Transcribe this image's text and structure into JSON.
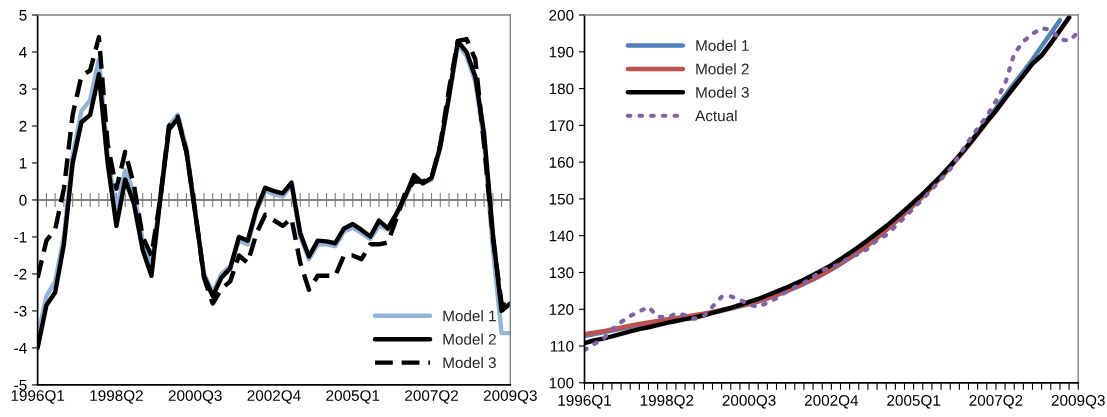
{
  "chart_data": [
    {
      "type": "line",
      "categories": [
        "1996Q1",
        null,
        null,
        null,
        null,
        null,
        null,
        null,
        null,
        "1998Q2",
        null,
        null,
        null,
        null,
        null,
        null,
        null,
        null,
        "2000Q3",
        null,
        null,
        null,
        null,
        null,
        null,
        null,
        null,
        "2002Q4",
        null,
        null,
        null,
        null,
        null,
        null,
        null,
        null,
        "2005Q1",
        null,
        null,
        null,
        null,
        null,
        null,
        null,
        null,
        "2007Q2",
        null,
        null,
        null,
        null,
        null,
        null,
        null,
        null,
        "2009Q3"
      ],
      "series": [
        {
          "name": "Model 1",
          "color": "#95b3d7",
          "line_style": "solid",
          "values": [
            -3.7,
            -2.6,
            -2.2,
            -1.0,
            1.2,
            2.4,
            2.7,
            3.8,
            1.2,
            -0.3,
            0.8,
            0.2,
            -1.1,
            -1.8,
            0.1,
            2.0,
            2.3,
            1.4,
            -0.3,
            -2.0,
            -2.5,
            -2.0,
            -1.8,
            -1.1,
            -1.2,
            -0.3,
            0.25,
            0.15,
            0.1,
            0.4,
            -1.0,
            -1.6,
            -1.2,
            -1.2,
            -1.25,
            -0.85,
            -0.75,
            -0.9,
            -1.05,
            -0.7,
            -0.8,
            -0.4,
            0.05,
            0.6,
            0.45,
            0.55,
            1.4,
            2.8,
            4.2,
            3.9,
            3.2,
            1.6,
            -1.3,
            -3.6,
            -3.6
          ]
        },
        {
          "name": "Model 2",
          "color": "#000000",
          "line_style": "solid",
          "values": [
            -4.0,
            -2.85,
            -2.5,
            -1.2,
            1.0,
            2.1,
            2.3,
            3.4,
            1.0,
            -0.7,
            0.55,
            -0.1,
            -1.35,
            -2.05,
            0.0,
            1.9,
            2.2,
            1.3,
            -0.35,
            -2.05,
            -2.6,
            -2.1,
            -1.85,
            -1.0,
            -1.1,
            -0.25,
            0.33,
            0.24,
            0.18,
            0.47,
            -0.9,
            -1.53,
            -1.1,
            -1.12,
            -1.17,
            -0.77,
            -0.65,
            -0.81,
            -0.99,
            -0.56,
            -0.77,
            -0.36,
            0.1,
            0.67,
            0.45,
            0.6,
            1.45,
            2.8,
            4.28,
            4.0,
            3.33,
            1.8,
            -0.9,
            -3.0,
            -2.8
          ]
        },
        {
          "name": "Model 3",
          "color": "#000000",
          "line_style": "dashed",
          "values": [
            -2.1,
            -1.1,
            -0.8,
            0.3,
            2.3,
            3.35,
            3.5,
            4.4,
            1.5,
            0.3,
            1.3,
            0.4,
            -1.0,
            -1.5,
            0.0,
            2.0,
            2.25,
            1.3,
            -0.3,
            -2.1,
            -2.8,
            -2.4,
            -2.2,
            -1.5,
            -1.7,
            -0.9,
            -0.4,
            -0.55,
            -0.7,
            -0.5,
            -1.7,
            -2.43,
            -2.05,
            -2.05,
            -2.05,
            -1.5,
            -1.5,
            -1.6,
            -1.2,
            -1.2,
            -1.15,
            -0.5,
            0.2,
            0.5,
            0.5,
            0.6,
            1.5,
            3.0,
            4.3,
            4.35,
            3.8,
            1.5,
            -1.0,
            -2.8,
            -2.9
          ]
        }
      ],
      "ylim": [
        -5,
        5
      ],
      "yticks": [
        -5,
        -4,
        -3,
        -2,
        -1,
        0,
        1,
        2,
        3,
        4,
        5
      ],
      "ref_lines": [
        {
          "axis": "y",
          "value": 0,
          "color": "#808080"
        }
      ],
      "legend": "bottom right",
      "grid": false
    },
    {
      "type": "line",
      "categories": [
        "1996Q1",
        null,
        null,
        null,
        null,
        null,
        null,
        null,
        null,
        "1998Q2",
        null,
        null,
        null,
        null,
        null,
        null,
        null,
        null,
        "2000Q3",
        null,
        null,
        null,
        null,
        null,
        null,
        null,
        null,
        "2002Q4",
        null,
        null,
        null,
        null,
        null,
        null,
        null,
        null,
        "2005Q1",
        null,
        null,
        null,
        null,
        null,
        null,
        null,
        null,
        "2007Q2",
        null,
        null,
        null,
        null,
        null,
        null,
        null,
        null,
        "2009Q3"
      ],
      "series": [
        {
          "name": "Model 1",
          "color": "#4f81bd",
          "line_style": "solid",
          "values": [
            112.8,
            113.2,
            113.7,
            114.2,
            114.7,
            115.2,
            115.7,
            116.1,
            116.5,
            116.9,
            117.3,
            117.7,
            118.1,
            118.6,
            119.1,
            119.6,
            120.2,
            120.8,
            121.4,
            122.1,
            122.9,
            123.8,
            124.8,
            125.8,
            126.9,
            128.1,
            129.4,
            130.8,
            132.3,
            133.9,
            135.6,
            137.4,
            139.4,
            141.5,
            143.7,
            146.0,
            148.4,
            150.8,
            153.3,
            156.0,
            158.8,
            161.8,
            164.9,
            168.1,
            171.4,
            174.7,
            178.1,
            181.4,
            184.6,
            187.9,
            191.5,
            195.0,
            198.6,
            null,
            null
          ]
        },
        {
          "name": "Model 2",
          "color": "#c0504d",
          "line_style": "solid",
          "values": [
            113.2,
            113.6,
            114.0,
            114.5,
            115.0,
            115.5,
            116.0,
            116.4,
            116.8,
            117.2,
            117.6,
            118.0,
            118.4,
            118.8,
            119.3,
            119.8,
            120.3,
            120.9,
            121.5,
            122.2,
            123.0,
            123.9,
            124.9,
            125.9,
            127.0,
            128.2,
            129.5,
            130.9,
            132.4,
            134.0,
            135.7,
            137.5,
            139.5,
            141.6,
            143.8,
            146.0,
            148.3,
            150.7,
            153.2,
            155.8,
            158.6,
            161.5,
            164.5,
            167.6,
            170.8,
            173.9,
            177.2,
            180.4,
            183.6,
            186.8,
            189.1,
            192.4,
            195.9,
            199.4,
            null
          ]
        },
        {
          "name": "Model 3",
          "color": "#000000",
          "line_style": "solid",
          "values": [
            110.8,
            111.5,
            112.0,
            112.6,
            113.3,
            114.0,
            114.6,
            115.1,
            115.7,
            116.3,
            116.8,
            117.3,
            117.7,
            118.3,
            119.0,
            119.7,
            120.4,
            121.2,
            122.0,
            122.8,
            123.8,
            124.8,
            125.8,
            126.9,
            128.0,
            129.3,
            130.6,
            132.0,
            133.6,
            135.3,
            137.0,
            138.8,
            140.7,
            142.6,
            144.7,
            146.9,
            149.1,
            151.4,
            153.8,
            156.3,
            159.0,
            161.8,
            164.7,
            167.8,
            171.0,
            174.0,
            177.3,
            180.5,
            183.6,
            186.8,
            189.0,
            192.3,
            195.8,
            199.3,
            null
          ]
        },
        {
          "name": "Actual",
          "color": "#8064a2",
          "line_style": "dotted",
          "values": [
            108.9,
            110.5,
            111.8,
            114.5,
            116.5,
            118.2,
            119.4,
            120.6,
            118.0,
            117.7,
            118.8,
            118.4,
            117.4,
            118.0,
            120.7,
            123.4,
            123.5,
            122.6,
            121.3,
            120.6,
            121.8,
            123.0,
            124.6,
            126.0,
            127.2,
            128.7,
            130.6,
            131.5,
            132.2,
            134.3,
            135.0,
            136.5,
            138.8,
            140.2,
            142.5,
            145.0,
            147.5,
            150.0,
            152.6,
            155.4,
            158.1,
            162.0,
            165.7,
            169.2,
            172.5,
            176.6,
            181.3,
            189.5,
            192.8,
            194.9,
            196.4,
            196.0,
            193.4,
            193.0,
            195.3
          ]
        }
      ],
      "ylim": [
        100,
        200
      ],
      "yticks": [
        100,
        110,
        120,
        130,
        140,
        150,
        160,
        170,
        180,
        190,
        200
      ],
      "legend": "top left",
      "grid": false
    }
  ]
}
